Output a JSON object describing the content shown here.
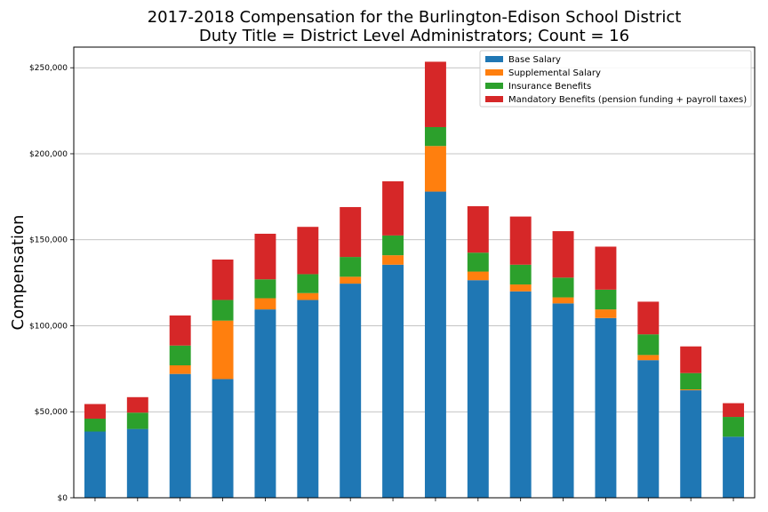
{
  "chart_data": {
    "type": "bar",
    "stacked": true,
    "title": [
      "2017-2018 Compensation for the Burlington-Edison School District",
      "Duty Title = District Level Administrators; Count = 16"
    ],
    "xlabel": "",
    "ylabel": "Compensation",
    "ylim": [
      0,
      262000
    ],
    "yticks": [
      0,
      50000,
      100000,
      150000,
      200000,
      250000
    ],
    "ytick_labels": [
      "$0",
      "$50,000",
      "$100,000",
      "$150,000",
      "$200,000",
      "$250,000"
    ],
    "grid": "horizontal",
    "legend_position": "top-right",
    "colors": [
      "#1f77b4",
      "#ff7f0e",
      "#2ca02c",
      "#d62728"
    ],
    "series": [
      {
        "name": "Base Salary",
        "values": [
          38500,
          40000,
          72000,
          69000,
          109500,
          115000,
          124500,
          135500,
          178000,
          126500,
          120000,
          113000,
          104500,
          80000,
          62500,
          35500
        ]
      },
      {
        "name": "Supplemental Salary",
        "values": [
          0,
          0,
          5000,
          34000,
          6500,
          4000,
          4000,
          5500,
          26500,
          5000,
          4000,
          3500,
          5000,
          3000,
          500,
          0
        ]
      },
      {
        "name": "Insurance Benefits",
        "values": [
          7500,
          9500,
          11500,
          12000,
          11000,
          11000,
          11500,
          11500,
          11000,
          11000,
          11500,
          11500,
          11500,
          12000,
          9500,
          11500
        ]
      },
      {
        "name": "Mandatory Benefits (pension funding + payroll taxes)",
        "values": [
          8500,
          9000,
          17500,
          23500,
          26500,
          27500,
          29000,
          31500,
          38000,
          27000,
          28000,
          27000,
          25000,
          19000,
          15500,
          8000
        ]
      }
    ]
  }
}
